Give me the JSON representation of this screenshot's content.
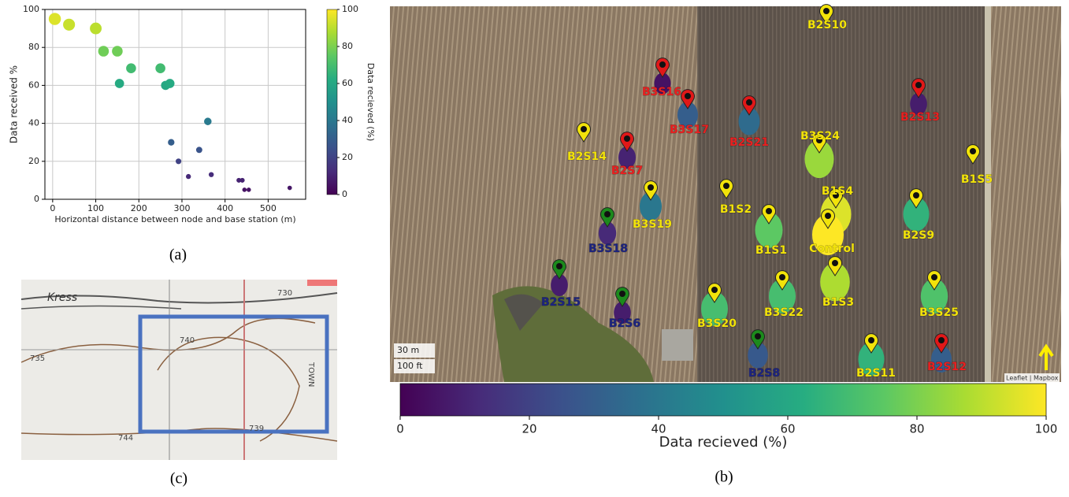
{
  "chart_data": {
    "type": "scatter",
    "x_label": "Horizontal distance between node and base station (m)",
    "y_label": "Data received %",
    "x": [
      5,
      38,
      100,
      118,
      150,
      155,
      182,
      250,
      262,
      272,
      275,
      292,
      315,
      340,
      360,
      368,
      432,
      440,
      445,
      455,
      550
    ],
    "values": [
      95,
      92,
      90,
      78,
      78,
      61,
      69,
      69,
      60,
      61,
      30,
      20,
      12,
      26,
      41,
      13,
      10,
      10,
      5,
      5,
      6
    ],
    "xlim": [
      -18,
      587
    ],
    "ylim": [
      0,
      100
    ],
    "xticks": [
      0,
      100,
      200,
      300,
      400,
      500
    ],
    "yticks": [
      0,
      20,
      40,
      60,
      80,
      100
    ],
    "grid": true,
    "colormap": "viridis",
    "colorbar": {
      "label": "Data recieved (%)",
      "lim": [
        0,
        100
      ],
      "ticks": [
        0,
        20,
        40,
        60,
        80,
        100
      ]
    }
  },
  "panel_labels": [
    "(a)",
    "(b)",
    "(c)"
  ],
  "map": {
    "nodes": [
      {
        "label": "B2S10",
        "pin_color": "#f2e30a",
        "label_color": "#f2e30a"
      },
      {
        "label": "B3S16",
        "pin_color": "#e01818",
        "label_color": "#e82020",
        "value": 5
      },
      {
        "label": "B3S17",
        "pin_color": "#e01818",
        "label_color": "#e82020",
        "value": 30
      },
      {
        "label": "B2S21",
        "pin_color": "#e01818",
        "label_color": "#e82020",
        "value": 35
      },
      {
        "label": "B2S13",
        "pin_color": "#e01818",
        "label_color": "#e82020",
        "value": 8
      },
      {
        "label": "B3S24",
        "pin_color": "#f2e30a",
        "label_color": "#f2e30a",
        "value": 85
      },
      {
        "label": "B2S14",
        "pin_color": "#f2e30a",
        "label_color": "#f2e30a"
      },
      {
        "label": "B2S7",
        "pin_color": "#e01818",
        "label_color": "#e82020",
        "value": 10
      },
      {
        "label": "B1S5",
        "pin_color": "#f2e30a",
        "label_color": "#f2e30a"
      },
      {
        "label": "B1S2",
        "pin_color": "#f2e30a",
        "label_color": "#f2e30a"
      },
      {
        "label": "B1S4",
        "pin_color": "#f2e30a",
        "label_color": "#f2e30a",
        "value": 95
      },
      {
        "label": "Control",
        "pin_color": "#f2e30a",
        "label_color": "#f2e30a",
        "value": 100
      },
      {
        "label": "B3S19",
        "pin_color": "#f2e30a",
        "label_color": "#f2e30a",
        "value": 40
      },
      {
        "label": "B3S18",
        "pin_color": "#1c8a1c",
        "label_color": "#1c237e",
        "value": 12
      },
      {
        "label": "B1S1",
        "pin_color": "#f2e30a",
        "label_color": "#f2e30a",
        "value": 75
      },
      {
        "label": "B2S9",
        "pin_color": "#f2e30a",
        "label_color": "#f2e30a",
        "value": 65
      },
      {
        "label": "B2S15",
        "pin_color": "#1c8a1c",
        "label_color": "#1c237e",
        "value": 8
      },
      {
        "label": "B2S6",
        "pin_color": "#1c8a1c",
        "label_color": "#1c237e",
        "value": 8
      },
      {
        "label": "B1S3",
        "pin_color": "#f2e30a",
        "label_color": "#f2e30a",
        "value": 88
      },
      {
        "label": "B3S20",
        "pin_color": "#f2e30a",
        "label_color": "#f2e30a",
        "value": 70
      },
      {
        "label": "B3S22",
        "pin_color": "#f2e30a",
        "label_color": "#f2e30a",
        "value": 70
      },
      {
        "label": "B3S25",
        "pin_color": "#f2e30a",
        "label_color": "#f2e30a",
        "value": 72
      },
      {
        "label": "B2S8",
        "pin_color": "#1c8a1c",
        "label_color": "#1c237e",
        "value": 28
      },
      {
        "label": "B2S11",
        "pin_color": "#f2e30a",
        "label_color": "#f2e30a",
        "value": 65
      },
      {
        "label": "B2S12",
        "pin_color": "#e01818",
        "label_color": "#e82020",
        "value": 30
      }
    ],
    "scale_labels": [
      "30 m",
      "100 ft"
    ],
    "attribution": "Leaflet | Mapbox",
    "colorbar": {
      "label": "Data recieved (%)",
      "lim": [
        0,
        100
      ],
      "ticks": [
        0,
        20,
        40,
        60,
        80,
        100
      ]
    }
  },
  "topo_map": {
    "labels": [
      "Kress",
      "730",
      "740",
      "735",
      "739",
      "744",
      "TOWN"
    ]
  }
}
